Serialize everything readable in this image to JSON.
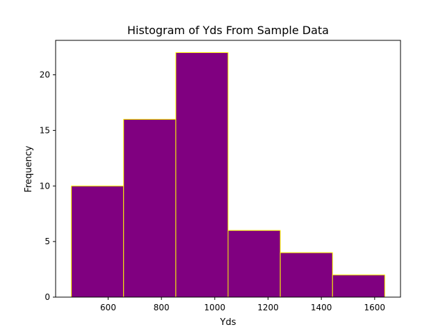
{
  "chart_data": {
    "type": "bar",
    "title": "Histogram of Yds From Sample Data",
    "xlabel": "Yds",
    "ylabel": "Frequency",
    "bins": [
      {
        "start": 462,
        "end": 658,
        "count": 10
      },
      {
        "start": 658,
        "end": 854,
        "count": 16
      },
      {
        "start": 854,
        "end": 1050,
        "count": 22
      },
      {
        "start": 1050,
        "end": 1246,
        "count": 6
      },
      {
        "start": 1246,
        "end": 1442,
        "count": 4
      },
      {
        "start": 1442,
        "end": 1638,
        "count": 2
      }
    ],
    "xlim": [
      403,
      1697
    ],
    "ylim": [
      0,
      23.1
    ],
    "xticks": [
      600,
      800,
      1000,
      1200,
      1400,
      1600
    ],
    "yticks": [
      0,
      5,
      10,
      15,
      20
    ],
    "bar_color": "#800080",
    "edge_color": "#FFFF00",
    "grid": false
  }
}
